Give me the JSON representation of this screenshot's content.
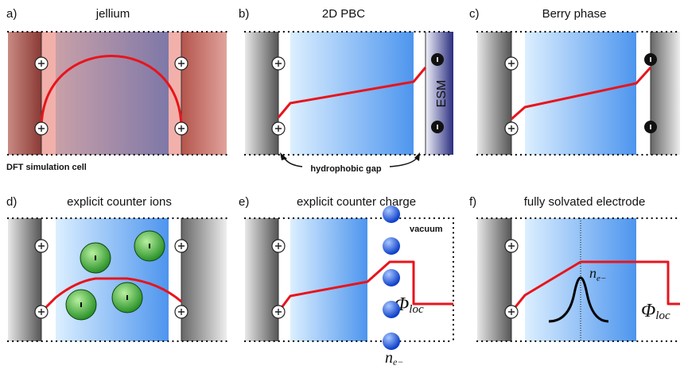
{
  "panels": [
    {
      "letter": "a)",
      "title": "jellium",
      "caption": "DFT simulation cell"
    },
    {
      "letter": "b)",
      "title": "2D PBC",
      "esm": "ESM",
      "gap": "hydrophobic gap"
    },
    {
      "letter": "c)",
      "title": "Berry phase"
    },
    {
      "letter": "d)",
      "title": "explicit counter ions"
    },
    {
      "letter": "e)",
      "title": "explicit counter charge",
      "vacuum": "vacuum",
      "potential": {
        "symbol": "Φ",
        "subscript": "loc"
      },
      "density": {
        "symbol": "n",
        "subscript": "e−"
      }
    },
    {
      "letter": "f)",
      "title": "fully solvated electrode",
      "density": {
        "symbol": "n",
        "subscript": "e−"
      },
      "potential": {
        "symbol": "Φ",
        "subscript": "loc"
      }
    }
  ]
}
